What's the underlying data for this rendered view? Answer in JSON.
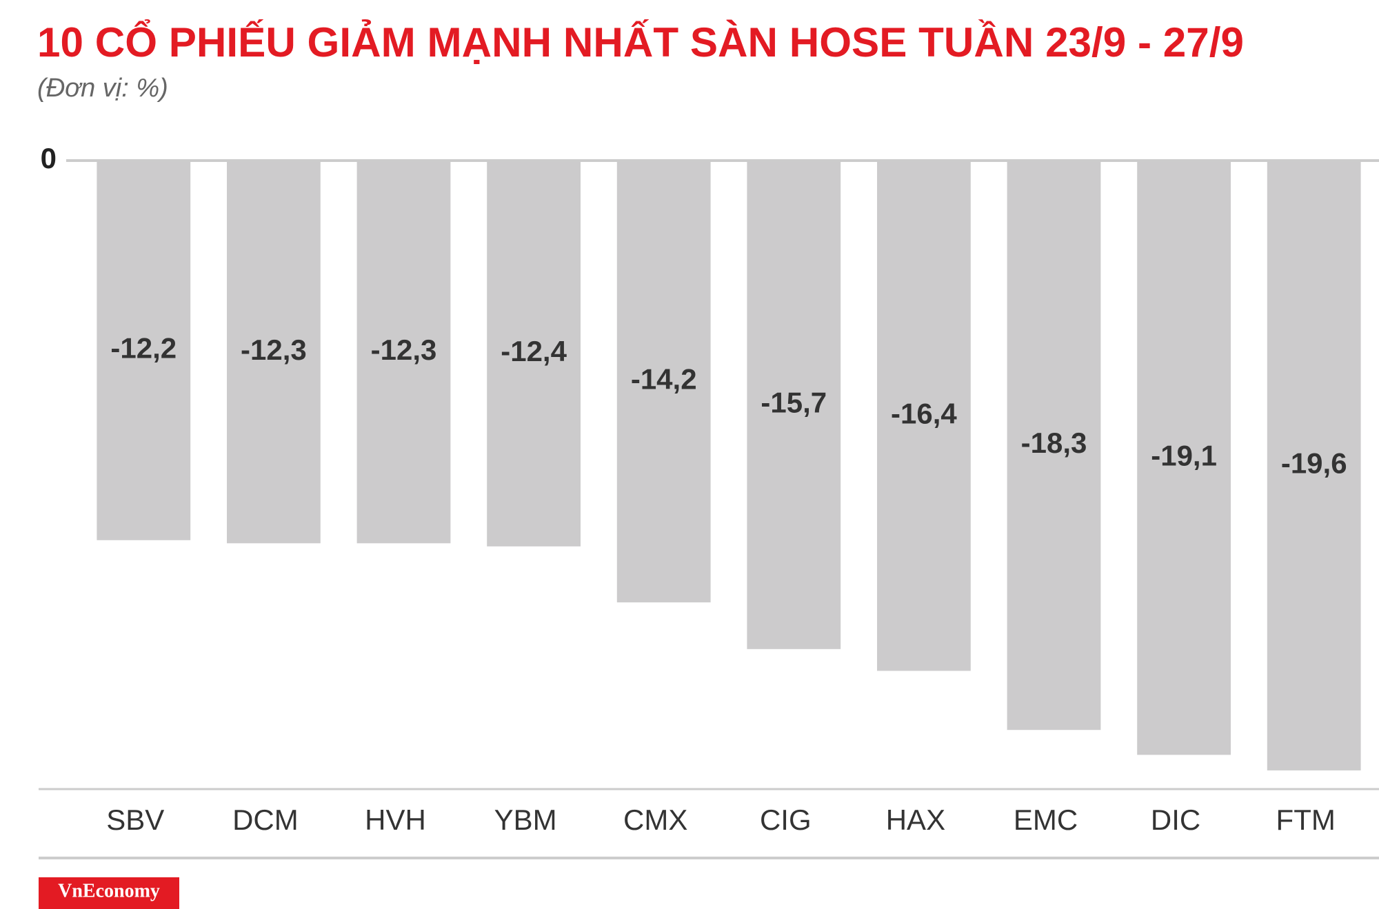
{
  "chart_data": {
    "type": "bar",
    "title": "10 CỔ PHIẾU GIẢM MẠNH NHẤT SÀN HOSE TUẦN 23/9 - 27/9",
    "subtitle": "(Đơn vị: %)",
    "categories": [
      "SBV",
      "DCM",
      "HVH",
      "YBM",
      "CMX",
      "CIG",
      "HAX",
      "EMC",
      "DIC",
      "FTM"
    ],
    "values": [
      -12.2,
      -12.3,
      -12.3,
      -12.4,
      -14.2,
      -15.7,
      -16.4,
      -18.3,
      -19.1,
      -19.6
    ],
    "value_labels": [
      "-12,2",
      "-12,3",
      "-12,3",
      "-12,4",
      "-14,2",
      "-15,7",
      "-16,4",
      "-18,3",
      "-19,1",
      "-19,6"
    ],
    "color": "#cccbcc",
    "ylim": [
      -20.2,
      0
    ],
    "yticks": [
      0
    ],
    "logo": "VnEconomy"
  }
}
